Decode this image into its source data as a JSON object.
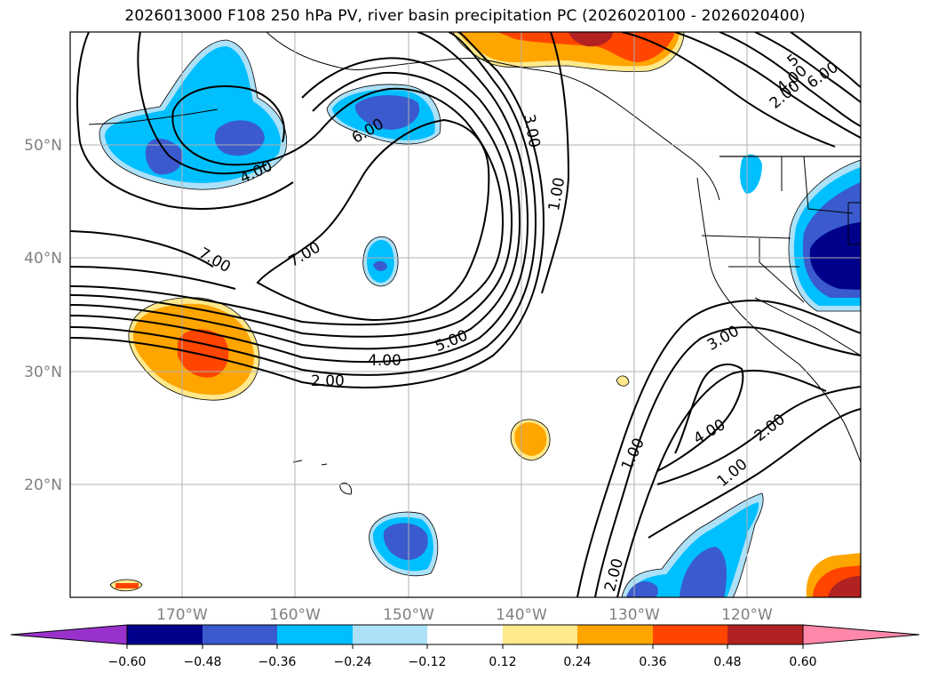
{
  "title": "2026013000 F108 250 hPa PV, river basin precipitation PC (2026020100 - 2026020400)",
  "colors": {
    "c_n060": "#9932CC",
    "c_n048": "#00008B",
    "c_n036": "#3A5ACD",
    "c_n024": "#00BFFF",
    "c_n012": "#ADE1F8",
    "c_zero": "#FFFFFF",
    "c_p012": "#FFE98C",
    "c_p024": "#FFA500",
    "c_p036": "#FF4500",
    "c_p048": "#B22222",
    "c_p060": "#FF88AA",
    "grid": "#B0B0B0",
    "axis_label": "#808080"
  },
  "map": {
    "lat_labels": [
      "50°N",
      "40°N",
      "30°N",
      "20°N"
    ],
    "lon_labels": [
      "170°W",
      "160°W",
      "150°W",
      "140°W",
      "130°W",
      "120°W"
    ]
  },
  "contour_labels": {
    "a": "4.00",
    "b": "6.00",
    "c": "7.00",
    "d": "7.00",
    "e": "3.00",
    "f": "1.00",
    "g": "5.00",
    "h": "4.00",
    "i": "2.00",
    "j": "3.00",
    "k": "4.00",
    "l": "2.00",
    "m": "1.00",
    "n": "1.00",
    "o": "2.00",
    "p": "6.00",
    "q": "2.00",
    "r": "4.00",
    "s": "5"
  },
  "colorbar": {
    "ticks": [
      "−0.60",
      "−0.48",
      "−0.36",
      "−0.24",
      "−0.12",
      "0.12",
      "0.24",
      "0.36",
      "0.48",
      "0.60"
    ],
    "bins": [
      "c_n060",
      "c_n048",
      "c_n036",
      "c_n024",
      "c_n012",
      "c_zero",
      "c_p012",
      "c_p024",
      "c_p036",
      "c_p048",
      "c_p060"
    ]
  }
}
